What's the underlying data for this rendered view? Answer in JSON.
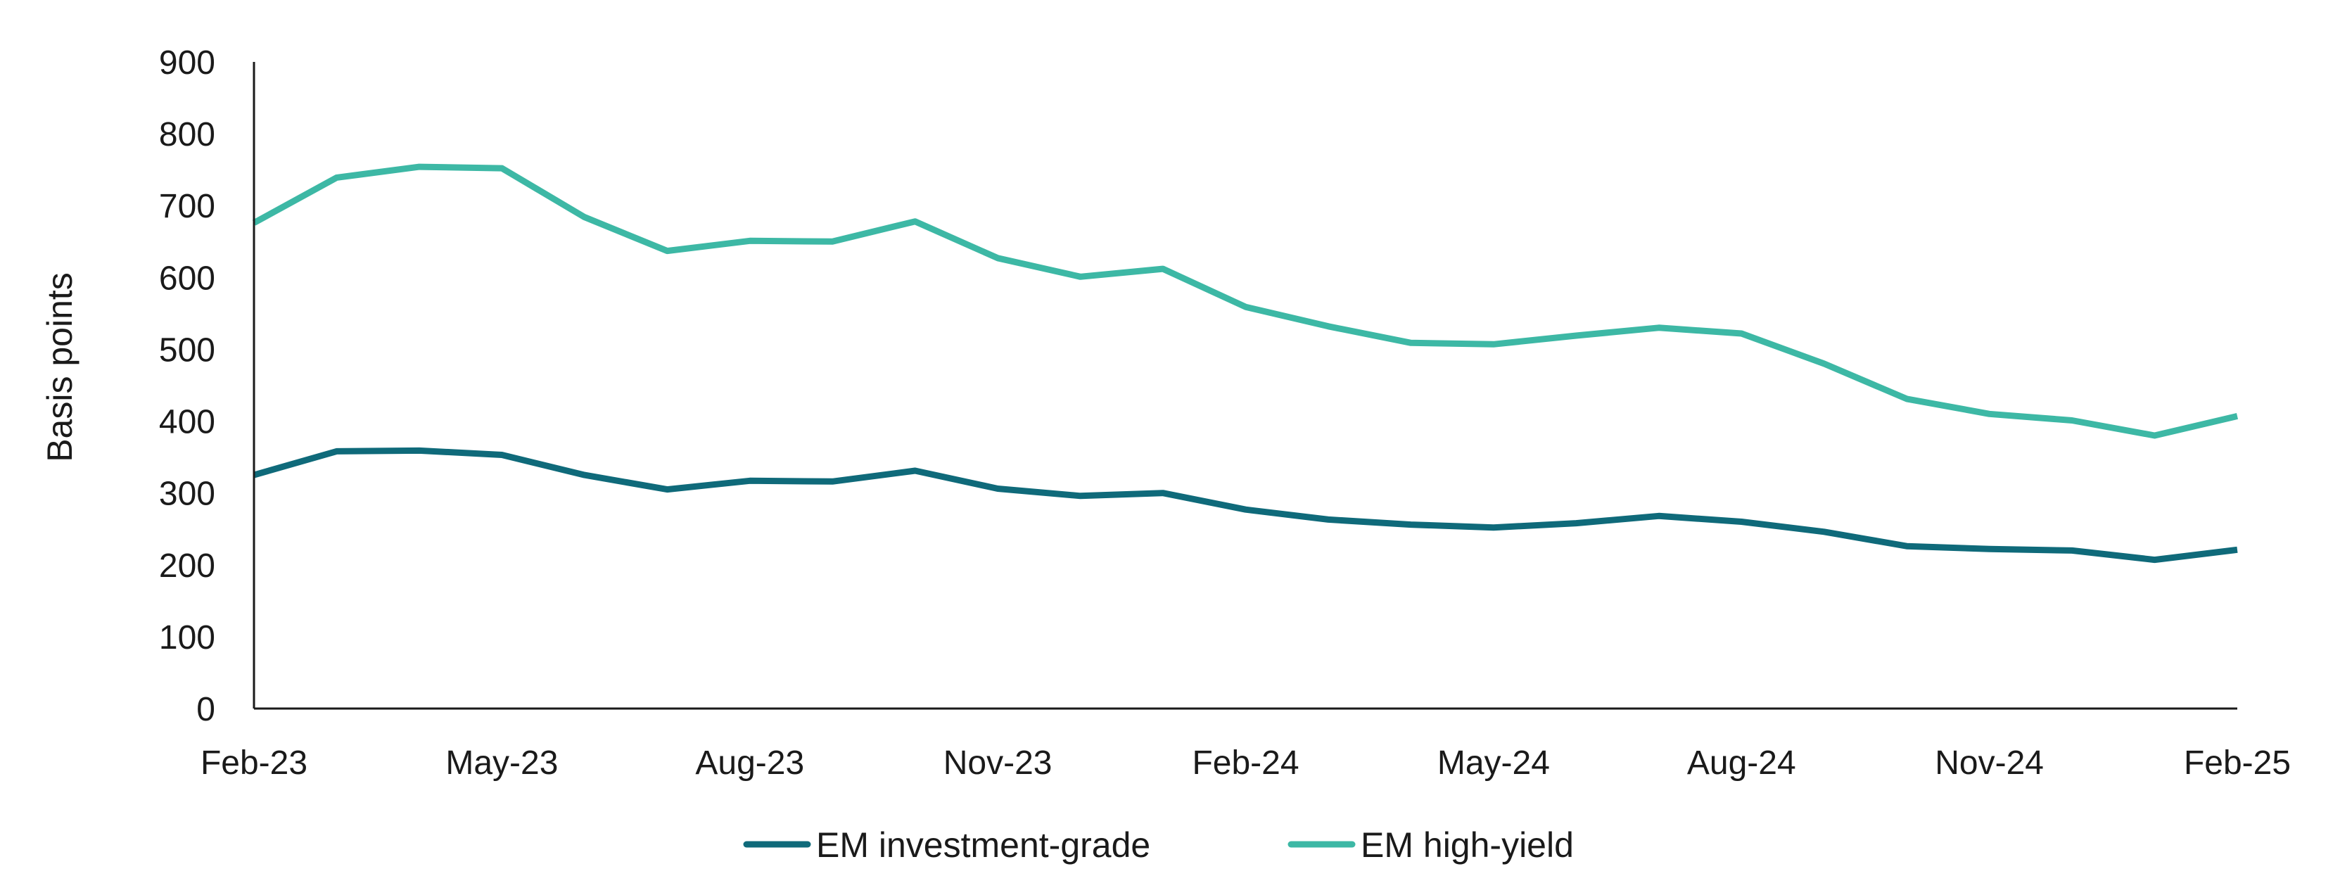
{
  "chart_data": {
    "type": "line",
    "title": "",
    "xlabel": "",
    "ylabel": "Basis points",
    "ylim": [
      0,
      900
    ],
    "yticks": [
      "0",
      "100",
      "200",
      "300",
      "400",
      "500",
      "600",
      "700",
      "800",
      "900"
    ],
    "grid": false,
    "legend_position": "bottom-center",
    "x": [
      "Feb-23",
      "Mar-23",
      "Apr-23",
      "May-23",
      "Jun-23",
      "Jul-23",
      "Aug-23",
      "Sep-23",
      "Oct-23",
      "Nov-23",
      "Dec-23",
      "Jan-24",
      "Feb-24",
      "Mar-24",
      "Apr-24",
      "May-24",
      "Jun-24",
      "Jul-24",
      "Aug-24",
      "Sep-24",
      "Oct-24",
      "Nov-24",
      "Dec-24",
      "Jan-25",
      "Feb-25"
    ],
    "xticks": [
      "Feb-23",
      "May-23",
      "Aug-23",
      "Nov-23",
      "Feb-24",
      "May-24",
      "Aug-24",
      "Nov-24",
      "Feb-25"
    ],
    "series": [
      {
        "name": "EM investment-grade",
        "color": "#0f6a7a",
        "values": [
          325,
          358,
          359,
          353,
          325,
          305,
          317,
          316,
          331,
          306,
          296,
          300,
          277,
          263,
          256,
          252,
          258,
          268,
          260,
          246,
          226,
          222,
          220,
          207,
          221
        ]
      },
      {
        "name": "EM high-yield",
        "color": "#3db8a5",
        "values": [
          676,
          739,
          754,
          752,
          684,
          637,
          651,
          650,
          678,
          627,
          601,
          612,
          559,
          532,
          509,
          507,
          519,
          530,
          522,
          480,
          431,
          410,
          401,
          380,
          407
        ]
      }
    ]
  }
}
